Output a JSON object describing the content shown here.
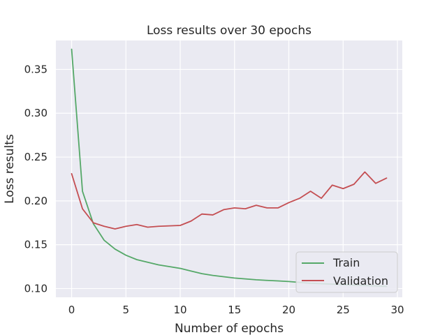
{
  "chart_data": {
    "type": "line",
    "title": "Loss results over 30 epochs",
    "xlabel": "Number of epochs",
    "ylabel": "Loss results",
    "xlim": [
      -1.45,
      30.45
    ],
    "ylim": [
      0.09,
      0.383
    ],
    "xticks": [
      0,
      5,
      10,
      15,
      20,
      25,
      30
    ],
    "yticks": [
      0.1,
      0.15,
      0.2,
      0.25,
      0.3,
      0.35
    ],
    "ytick_labels": [
      "0.10",
      "0.15",
      "0.20",
      "0.25",
      "0.30",
      "0.35"
    ],
    "grid": true,
    "legend_position": "lower-right",
    "x": [
      0,
      1,
      2,
      3,
      4,
      5,
      6,
      7,
      8,
      9,
      10,
      11,
      12,
      13,
      14,
      15,
      16,
      17,
      18,
      19,
      20,
      21,
      22,
      23,
      24,
      25,
      26,
      27,
      28,
      29
    ],
    "series": [
      {
        "name": "Train",
        "color": "#55a868",
        "values": [
          0.373,
          0.211,
          0.174,
          0.155,
          0.145,
          0.138,
          0.133,
          0.13,
          0.127,
          0.125,
          0.123,
          0.12,
          0.117,
          0.115,
          0.1135,
          0.112,
          0.111,
          0.11,
          0.1093,
          0.1087,
          0.108,
          0.107,
          0.106,
          0.1055,
          0.105,
          0.1045,
          0.104,
          0.1035,
          0.103,
          0.1025
        ]
      },
      {
        "name": "Validation",
        "color": "#c44e52",
        "values": [
          0.231,
          0.191,
          0.175,
          0.171,
          0.168,
          0.171,
          0.173,
          0.17,
          0.171,
          0.1715,
          0.172,
          0.177,
          0.185,
          0.184,
          0.19,
          0.192,
          0.191,
          0.195,
          0.192,
          0.192,
          0.198,
          0.203,
          0.211,
          0.203,
          0.218,
          0.214,
          0.219,
          0.233,
          0.22,
          0.226
        ]
      }
    ]
  }
}
